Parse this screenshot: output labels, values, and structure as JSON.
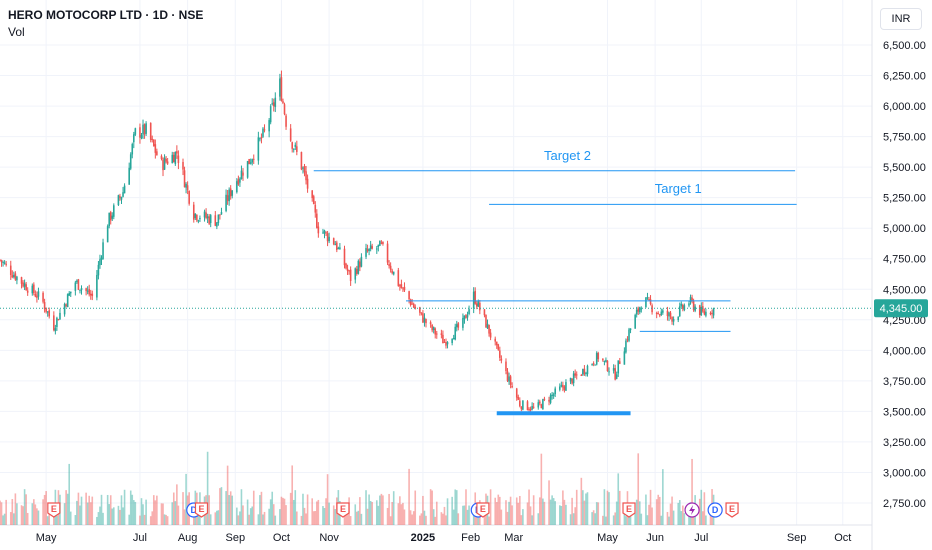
{
  "header": {
    "title": "HERO MOTOCORP LTD · 1D · NSE",
    "indicator": "Vol",
    "currency": "INR"
  },
  "colors": {
    "up": "#26a69a",
    "down": "#ef5350",
    "line": "#2196f3",
    "grid": "#f0f3fa",
    "text": "#131722",
    "price_badge": "#26a69a"
  },
  "chart_data": {
    "type": "candlestick",
    "y_axis": {
      "ticks": [
        "6,500.00",
        "6,250.00",
        "6,000.00",
        "5,750.00",
        "5,500.00",
        "5,250.00",
        "5,000.00",
        "4,750.00",
        "4,500.00",
        "4,250.00",
        "4,000.00",
        "3,750.00",
        "3,500.00",
        "3,250.00",
        "3,000.00",
        "2,750.00"
      ],
      "values": [
        6500,
        6250,
        6000,
        5750,
        5500,
        5250,
        5000,
        4750,
        4500,
        4250,
        4000,
        3750,
        3500,
        3250,
        3000,
        2750
      ],
      "range": [
        2650,
        6700
      ]
    },
    "x_axis": {
      "labels": [
        "May",
        "Jul",
        "Aug",
        "Sep",
        "Oct",
        "Nov",
        "2025",
        "Feb",
        "Mar",
        "May",
        "Jun",
        "Jul",
        "Sep",
        "Oct"
      ],
      "bold": [
        "2025"
      ],
      "dates": [
        "2024-05-01",
        "2024-07-01",
        "2024-08-01",
        "2024-09-01",
        "2024-10-01",
        "2024-11-01",
        "2025-01-01",
        "2025-02-01",
        "2025-03-01",
        "2025-05-01",
        "2025-06-01",
        "2025-07-01",
        "2025-09-01",
        "2025-10-01"
      ],
      "range": [
        "2024-04-01",
        "2025-10-20"
      ]
    },
    "last_price": {
      "value": 4345,
      "label": "4,345.00"
    },
    "price_path": [
      [
        "2024-04-01",
        4740
      ],
      [
        "2024-04-15",
        4560
      ],
      [
        "2024-04-28",
        4420
      ],
      [
        "2024-05-06",
        4200
      ],
      [
        "2024-05-20",
        4560
      ],
      [
        "2024-05-31",
        4440
      ],
      [
        "2024-06-10",
        5050
      ],
      [
        "2024-06-20",
        5300
      ],
      [
        "2024-06-28",
        5780
      ],
      [
        "2024-07-05",
        5800
      ],
      [
        "2024-07-15",
        5520
      ],
      [
        "2024-07-25",
        5620
      ],
      [
        "2024-08-05",
        5120
      ],
      [
        "2024-08-20",
        5060
      ],
      [
        "2024-09-01",
        5380
      ],
      [
        "2024-09-10",
        5550
      ],
      [
        "2024-09-20",
        5780
      ],
      [
        "2024-09-30",
        6180
      ],
      [
        "2024-10-05",
        5800
      ],
      [
        "2024-10-15",
        5480
      ],
      [
        "2024-10-25",
        5000
      ],
      [
        "2024-11-05",
        4880
      ],
      [
        "2024-11-15",
        4590
      ],
      [
        "2024-11-25",
        4800
      ],
      [
        "2024-12-05",
        4850
      ],
      [
        "2024-12-16",
        4550
      ],
      [
        "2024-12-26",
        4360
      ],
      [
        "2025-01-06",
        4180
      ],
      [
        "2025-01-15",
        4070
      ],
      [
        "2025-01-27",
        4220
      ],
      [
        "2025-02-03",
        4450
      ],
      [
        "2025-02-10",
        4250
      ],
      [
        "2025-02-18",
        4000
      ],
      [
        "2025-02-25",
        3780
      ],
      [
        "2025-03-05",
        3560
      ],
      [
        "2025-03-15",
        3520
      ],
      [
        "2025-03-25",
        3620
      ],
      [
        "2025-04-04",
        3720
      ],
      [
        "2025-04-15",
        3830
      ],
      [
        "2025-04-25",
        3950
      ],
      [
        "2025-05-06",
        3800
      ],
      [
        "2025-05-15",
        4150
      ],
      [
        "2025-05-24",
        4420
      ],
      [
        "2025-06-03",
        4310
      ],
      [
        "2025-06-13",
        4270
      ],
      [
        "2025-06-23",
        4400
      ],
      [
        "2025-07-02",
        4300
      ],
      [
        "2025-07-10",
        4345
      ]
    ],
    "lines": [
      {
        "from": [
          "2024-10-22",
          5470
        ],
        "to": [
          "2025-08-31",
          5470
        ]
      },
      {
        "from": [
          "2025-02-13",
          5195
        ],
        "to": [
          "2025-09-01",
          5195
        ]
      },
      {
        "from": [
          "2024-12-21",
          4405
        ],
        "to": [
          "2025-07-20",
          4405
        ]
      },
      {
        "from": [
          "2025-05-22",
          4155
        ],
        "to": [
          "2025-07-20",
          4155
        ]
      },
      {
        "from": [
          "2025-02-18",
          3485
        ],
        "to": [
          "2025-05-16",
          3485
        ],
        "thick": true
      }
    ],
    "annotations": [
      {
        "text": "Target 2",
        "date": "2025-04-05",
        "price": 5560
      },
      {
        "text": "Target 1",
        "date": "2025-06-16",
        "price": 5290
      }
    ],
    "event_markers": [
      {
        "date": "2024-05-06",
        "type": "E"
      },
      {
        "date": "2024-08-05",
        "type": "D"
      },
      {
        "date": "2024-08-10",
        "type": "E"
      },
      {
        "date": "2024-11-10",
        "type": "E"
      },
      {
        "date": "2025-02-06",
        "type": "D"
      },
      {
        "date": "2025-02-09",
        "type": "E"
      },
      {
        "date": "2025-05-15",
        "type": "E"
      },
      {
        "date": "2025-06-25",
        "type": "bolt"
      },
      {
        "date": "2025-07-10",
        "type": "D"
      },
      {
        "date": "2025-07-21",
        "type": "E"
      }
    ]
  }
}
